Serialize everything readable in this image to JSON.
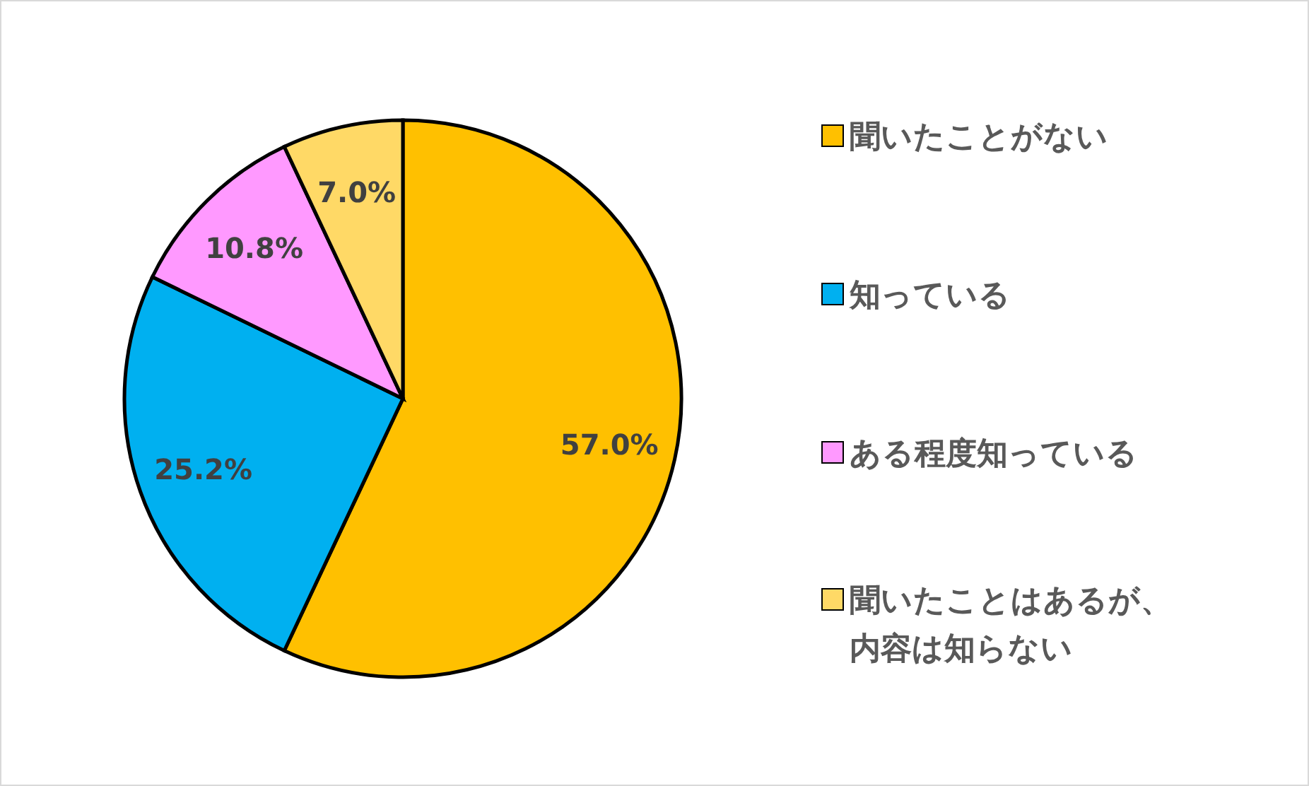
{
  "chart_data": {
    "type": "pie",
    "categories": [
      "聞いたことがない",
      "知っている",
      "ある程度知っている",
      "聞いたことはあるが、内容は知らない"
    ],
    "values": [
      57.0,
      25.2,
      10.8,
      7.0
    ],
    "value_labels": [
      "57.0%",
      "25.2%",
      "10.8%",
      "7.0%"
    ],
    "colors": [
      "#ffc000",
      "#00b0f0",
      "#ff99ff",
      "#ffd966"
    ],
    "legend": "right"
  }
}
